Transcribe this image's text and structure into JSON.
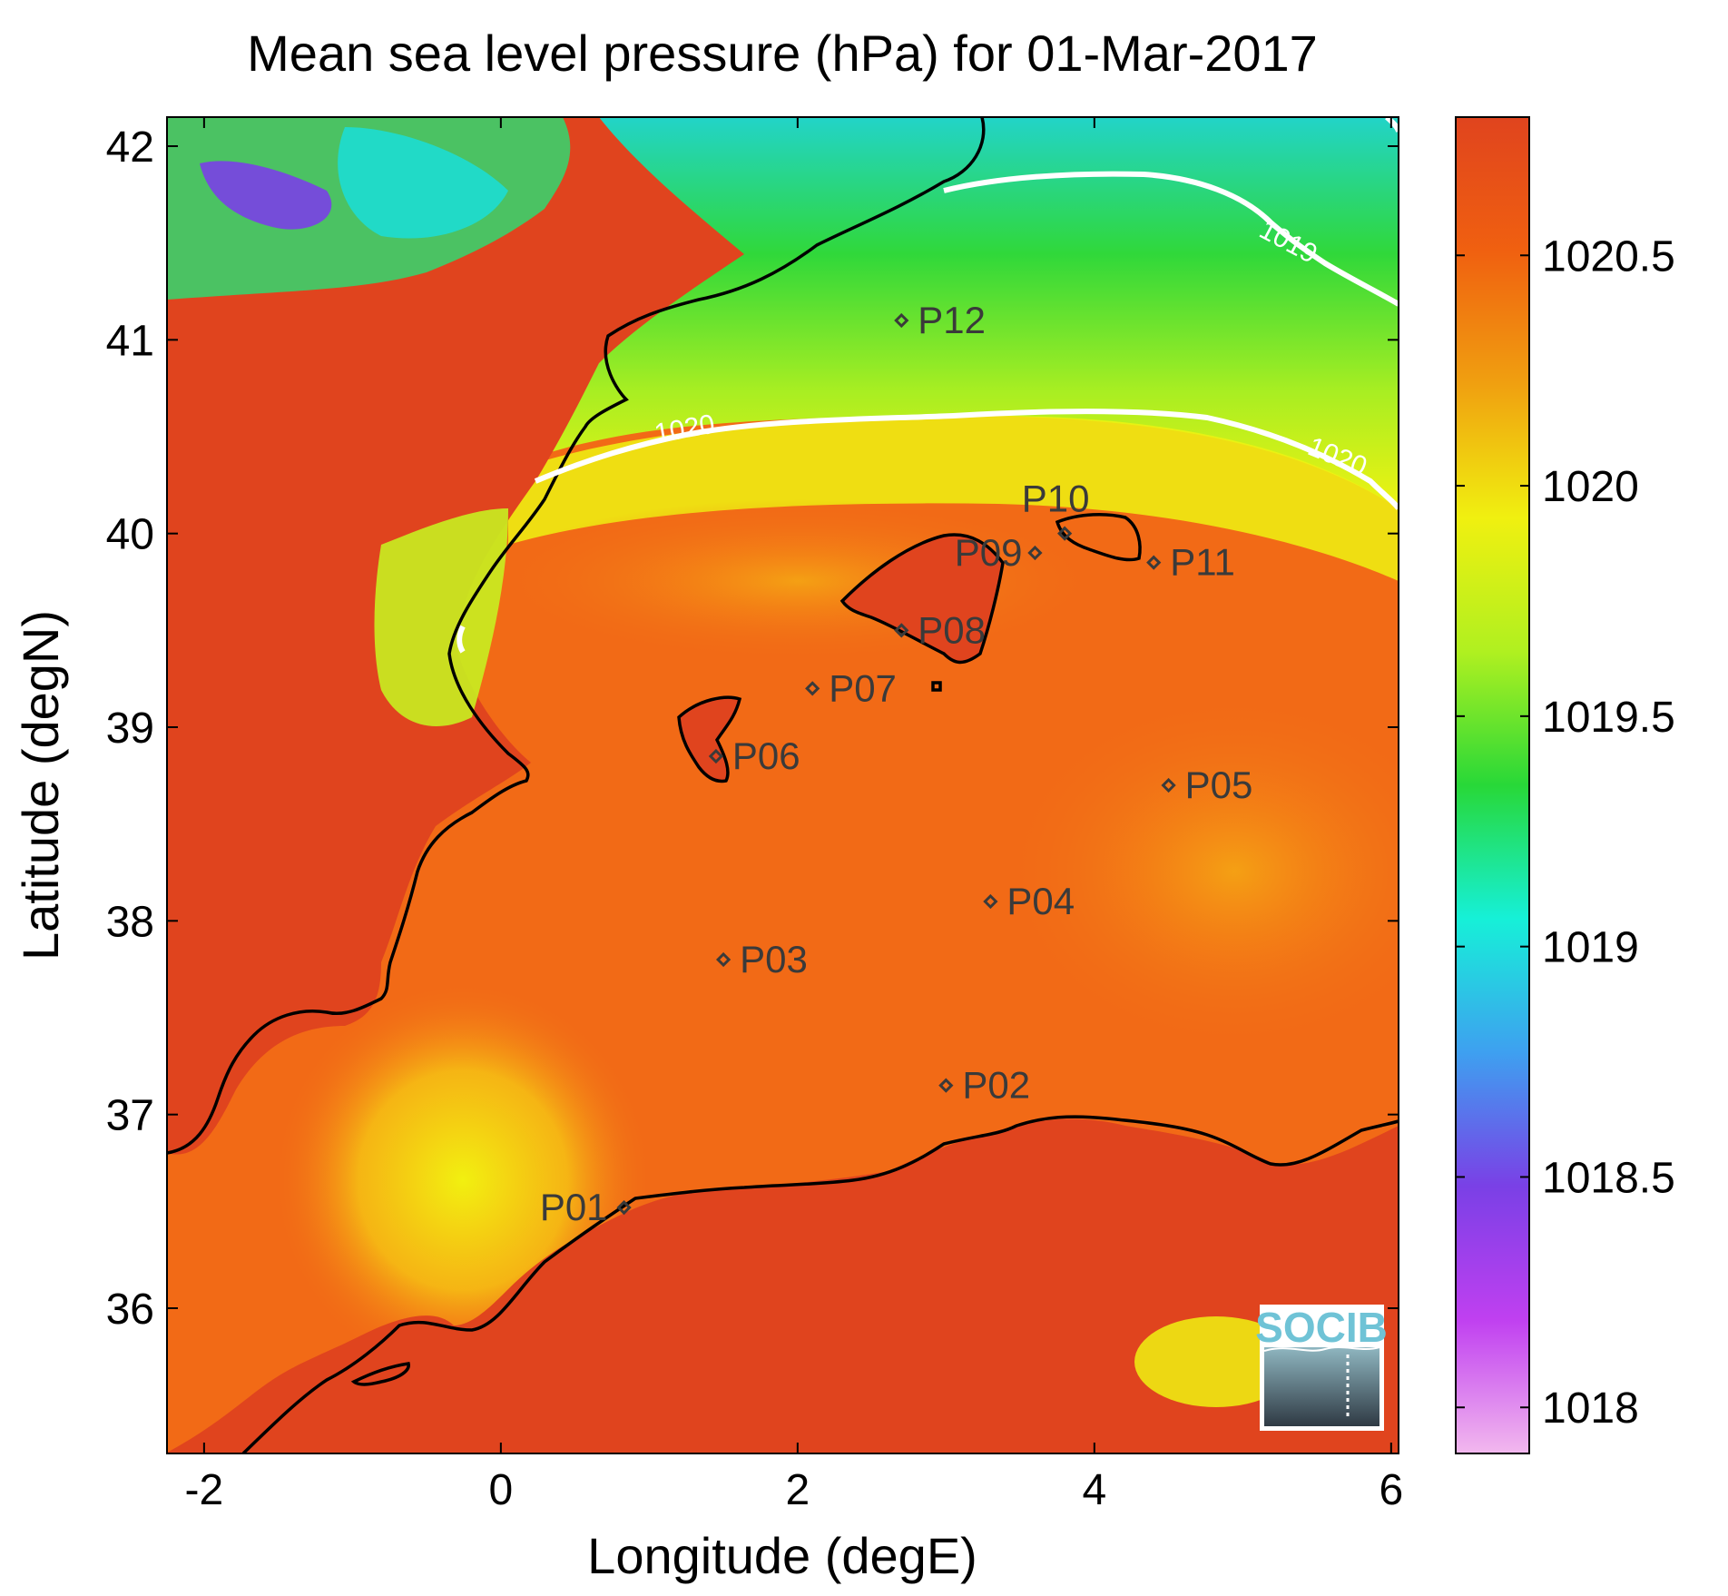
{
  "title": "Mean sea level pressure (hPa) for 01-Mar-2017",
  "xlabel": "Longitude (degE)",
  "ylabel": "Latitude (degN)",
  "map": {
    "lon_range": [
      -2.25,
      6.05
    ],
    "lat_range": [
      35.25,
      42.15
    ],
    "x_ticks": [
      -2,
      0,
      2,
      4,
      6
    ],
    "y_ticks": [
      36,
      37,
      38,
      39,
      40,
      41,
      42
    ],
    "x_tick_labels": [
      "-2",
      "0",
      "2",
      "4",
      "6"
    ],
    "y_tick_labels": [
      "36",
      "37",
      "38",
      "39",
      "40",
      "41",
      "42"
    ],
    "land_color": "#e0441e",
    "sea_color": "#f26a16",
    "coastline_color": "#000000"
  },
  "colorbar": {
    "range": [
      1017.9,
      1020.8
    ],
    "ticks": [
      1018,
      1018.5,
      1019,
      1019.5,
      1020,
      1020.5
    ],
    "tick_labels": [
      "1018",
      "1018.5",
      "1019",
      "1019.5",
      "1020",
      "1020.5"
    ],
    "colors": [
      "#f2b8ee",
      "#c040f0",
      "#7a40e6",
      "#3ea0f0",
      "#16f0d8",
      "#28d838",
      "#b0f020",
      "#f0f010",
      "#f0a010",
      "#f06010",
      "#e0441e"
    ]
  },
  "contours": [
    {
      "level": "1020",
      "labels": [
        "1020",
        "1020"
      ]
    },
    {
      "level": "1019",
      "labels": [
        "1019"
      ]
    }
  ],
  "stations": [
    {
      "id": "P01",
      "lon": 0.83,
      "lat": 36.52
    },
    {
      "id": "P02",
      "lon": 3.0,
      "lat": 37.15
    },
    {
      "id": "P03",
      "lon": 1.5,
      "lat": 37.8
    },
    {
      "id": "P04",
      "lon": 3.3,
      "lat": 38.1
    },
    {
      "id": "P05",
      "lon": 4.5,
      "lat": 38.7
    },
    {
      "id": "P06",
      "lon": 1.45,
      "lat": 38.85
    },
    {
      "id": "P07",
      "lon": 2.1,
      "lat": 39.2
    },
    {
      "id": "P08",
      "lon": 2.7,
      "lat": 39.5
    },
    {
      "id": "P09",
      "lon": 3.6,
      "lat": 39.9
    },
    {
      "id": "P10",
      "lon": 3.8,
      "lat": 40.0
    },
    {
      "id": "P11",
      "lon": 4.4,
      "lat": 39.85
    },
    {
      "id": "P12",
      "lon": 2.7,
      "lat": 41.1
    }
  ],
  "logo": {
    "text": "SOCIB"
  }
}
